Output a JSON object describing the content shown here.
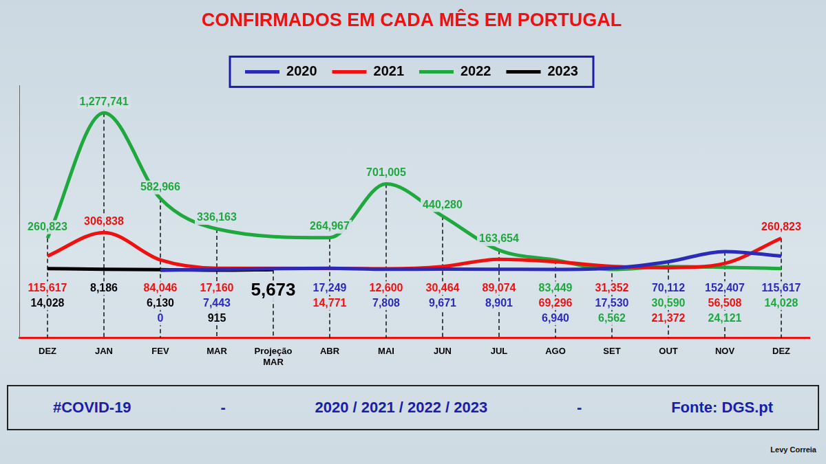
{
  "chart_data": {
    "type": "line",
    "title": "CONFIRMADOS EM CADA MÊS EM PORTUGAL",
    "categories": [
      "DEZ",
      "JAN",
      "FEV",
      "MAR",
      "Projeção MAR",
      "ABR",
      "MAI",
      "JUN",
      "JUL",
      "AGO",
      "SET",
      "OUT",
      "NOV",
      "DEZ"
    ],
    "series": [
      {
        "name": "2020",
        "color": "#2b2bb8",
        "values": [
          null,
          null,
          0,
          7443,
          null,
          17249,
          7808,
          9671,
          8901,
          6940,
          17530,
          70112,
          152407,
          115617
        ],
        "value_labels": [
          null,
          null,
          "0",
          "7,443",
          null,
          "17,249",
          "7,808",
          "9,671",
          "8,901",
          "6,940",
          "17,530",
          "70,112",
          "152,407",
          "115,617"
        ]
      },
      {
        "name": "2021",
        "color": "#ee1111",
        "values": [
          115617,
          306838,
          84046,
          17160,
          null,
          14771,
          12600,
          30464,
          89074,
          69296,
          31352,
          21372,
          56508,
          260823
        ],
        "value_labels": [
          "115,617",
          "306,838",
          "84,046",
          "17,160",
          null,
          "14,771",
          "12,600",
          "30,464",
          "89,074",
          "69,296",
          "31,352",
          "21,372",
          "56,508",
          "260,823"
        ]
      },
      {
        "name": "2022",
        "color": "#1fa83e",
        "values": [
          260823,
          1277741,
          582966,
          336163,
          null,
          264967,
          701005,
          440280,
          163654,
          83449,
          6562,
          30590,
          24121,
          14028
        ],
        "value_labels": [
          "260,823",
          "1,277,741",
          "582,966",
          "336,163",
          null,
          "264,967",
          "701,005",
          "440,280",
          "163,654",
          "83,449",
          "6,562",
          "30,590",
          "24,121",
          "14,028"
        ]
      },
      {
        "name": "2023",
        "color": "#000000",
        "values": [
          14028,
          8186,
          6130,
          915,
          5673,
          null,
          null,
          null,
          null,
          null,
          null,
          null,
          null,
          null
        ],
        "value_labels": [
          "14,028",
          "8,186",
          "6,130",
          "915",
          "5,673",
          null,
          null,
          null,
          null,
          null,
          null,
          null,
          null,
          null
        ]
      }
    ],
    "ylim": [
      -550000,
      1500000
    ],
    "grid": false,
    "legend": "top",
    "data_labels": true,
    "tick_labels": "x"
  },
  "footer": [
    "#COVID-19",
    "-",
    "2020 / 2021 / 2022 / 2023",
    "-",
    "Fonte: DGS.pt"
  ],
  "credit": "Levy Correia"
}
